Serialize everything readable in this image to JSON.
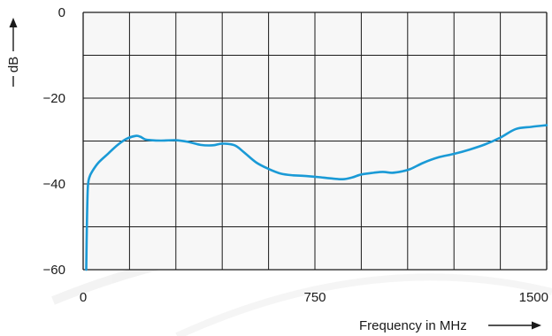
{
  "chart_data": {
    "type": "line",
    "title": "",
    "xlabel": "Frequency in MHz",
    "ylabel": "dB",
    "xlim": [
      0,
      1500
    ],
    "ylim": [
      -60,
      0
    ],
    "x_ticks": [
      {
        "value": 0,
        "label": "0"
      },
      {
        "value": 750,
        "label": "750"
      },
      {
        "value": 1500,
        "label": "1500"
      }
    ],
    "y_ticks": [
      {
        "value": 0,
        "label": "0"
      },
      {
        "value": -20,
        "label": "−20"
      },
      {
        "value": -40,
        "label": "−40"
      },
      {
        "value": -60,
        "label": "−60"
      }
    ],
    "grid": true,
    "x_grid_lines": 10,
    "y_grid_lines": 6,
    "line_color": "#1a9ad6",
    "grid_color": "#1a1a1a",
    "plot_background": "#f7f7f7",
    "series": [
      {
        "x": [
          10,
          12,
          15,
          20,
          30,
          50,
          80,
          110,
          140,
          170,
          185,
          200,
          220,
          250,
          300,
          340,
          380,
          420,
          450,
          490,
          520,
          560,
          600,
          640,
          680,
          710,
          760,
          800,
          840,
          870,
          900,
          940,
          970,
          1000,
          1030,
          1060,
          1100,
          1150,
          1200,
          1250,
          1300,
          1350,
          1400,
          1450,
          1500
        ],
        "y": [
          -60,
          -50,
          -41,
          -38.5,
          -37,
          -35,
          -33,
          -31,
          -29.5,
          -28.8,
          -29,
          -29.6,
          -29.8,
          -29.9,
          -29.8,
          -30.2,
          -30.9,
          -31,
          -30.6,
          -31,
          -32.6,
          -35,
          -36.5,
          -37.6,
          -38,
          -38.1,
          -38.4,
          -38.7,
          -38.9,
          -38.5,
          -37.8,
          -37.4,
          -37.2,
          -37.4,
          -37.1,
          -36.5,
          -35.1,
          -33.8,
          -33,
          -32,
          -30.8,
          -29.2,
          -27.2,
          -26.7,
          -26.3
        ]
      }
    ]
  }
}
